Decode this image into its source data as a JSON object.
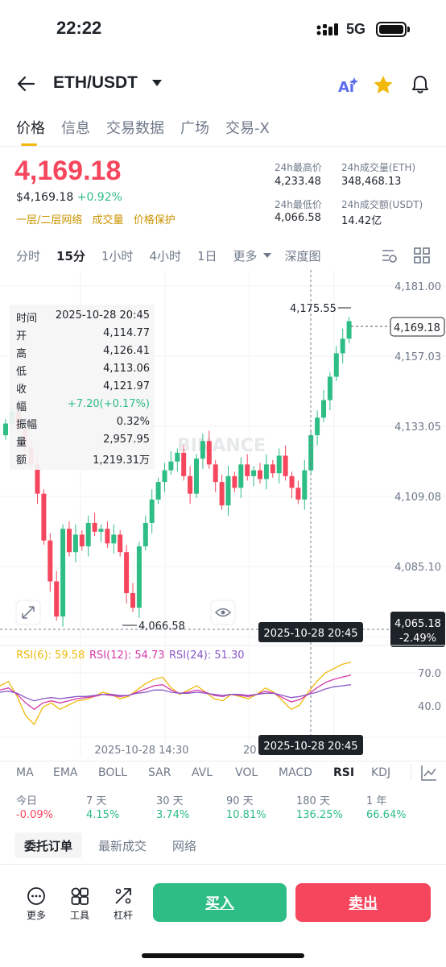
{
  "status": {
    "time": "22:22",
    "network": "5G"
  },
  "header": {
    "pair": "ETH/USDT"
  },
  "tabs": [
    "价格",
    "信息",
    "交易数据",
    "广场",
    "交易-X"
  ],
  "price": {
    "last": "4,169.18",
    "usd": "$4,169.18",
    "change": "+0.92%",
    "links": [
      "一层/二层网络",
      "成交量",
      "价格保护"
    ]
  },
  "stats": {
    "high_label": "24h最高价",
    "high": "4,233.48",
    "vol_eth_label": "24h成交量(ETH)",
    "vol_eth": "348,468.13",
    "low_label": "24h最低价",
    "low": "4,066.58",
    "vol_usdt_label": "24h成交额(USDT)",
    "vol_usdt": "14.42亿"
  },
  "intervals": [
    "分时",
    "15分",
    "1小时",
    "4小时",
    "1日",
    "更多",
    "深度图"
  ],
  "tooltip": {
    "time_label": "时间",
    "time": "2025-10-28 20:45",
    "open_label": "开",
    "open": "4,114.77",
    "high_label": "高",
    "high": "4,126.41",
    "low_label": "低",
    "low": "4,113.06",
    "close_label": "收",
    "close": "4,121.97",
    "range_label": "幅",
    "range": "+7.20(+0.17%)",
    "amp_label": "振幅",
    "amp": "0.32%",
    "vol_label": "量",
    "vol": "2,957.95",
    "amount_label": "额",
    "amount": "1,219.31万"
  },
  "chart": {
    "price_ticks": [
      "4,181.00",
      "4,157.03",
      "4,133.05",
      "4,109.08",
      "4,085.10"
    ],
    "max_label": "4,175.55",
    "min_label": "4,066.58",
    "last_label": "4,169.18",
    "cross_price": "4,065.18",
    "cross_pct": "-2.49%",
    "cross_time": "2025-10-28 20:45",
    "watermark": "BINANCE",
    "rsi6": "RSI(6): 59.58",
    "rsi12": "RSI(12): 54.73",
    "rsi24": "RSI(24): 51.30",
    "rsi_ticks": [
      "70.0",
      "40.0"
    ],
    "x_label": "2025-10-28 14:30",
    "x_label2": "20",
    "colors": {
      "up": "#2ebd85",
      "down": "#f6465d",
      "rsi6": "#f0b90b",
      "rsi12": "#d63aa8",
      "rsi24": "#8a56c7"
    }
  },
  "indicators": [
    "MA",
    "EMA",
    "BOLL",
    "SAR",
    "AVL",
    "VOL",
    "MACD",
    "RSI",
    "KDJ"
  ],
  "performance": [
    {
      "label": "今日",
      "value": "-0.09%"
    },
    {
      "label": "7 天",
      "value": "4.15%"
    },
    {
      "label": "30 天",
      "value": "3.74%"
    },
    {
      "label": "90 天",
      "value": "10.81%"
    },
    {
      "label": "180 天",
      "value": "136.25%"
    },
    {
      "label": "1 年",
      "value": "66.64%"
    }
  ],
  "order_tabs": [
    "委托订单",
    "最新成交",
    "网络"
  ],
  "bottom": {
    "more": "更多",
    "tools": "工具",
    "leverage": "杠杆",
    "buy": "买入",
    "sell": "卖出"
  }
}
